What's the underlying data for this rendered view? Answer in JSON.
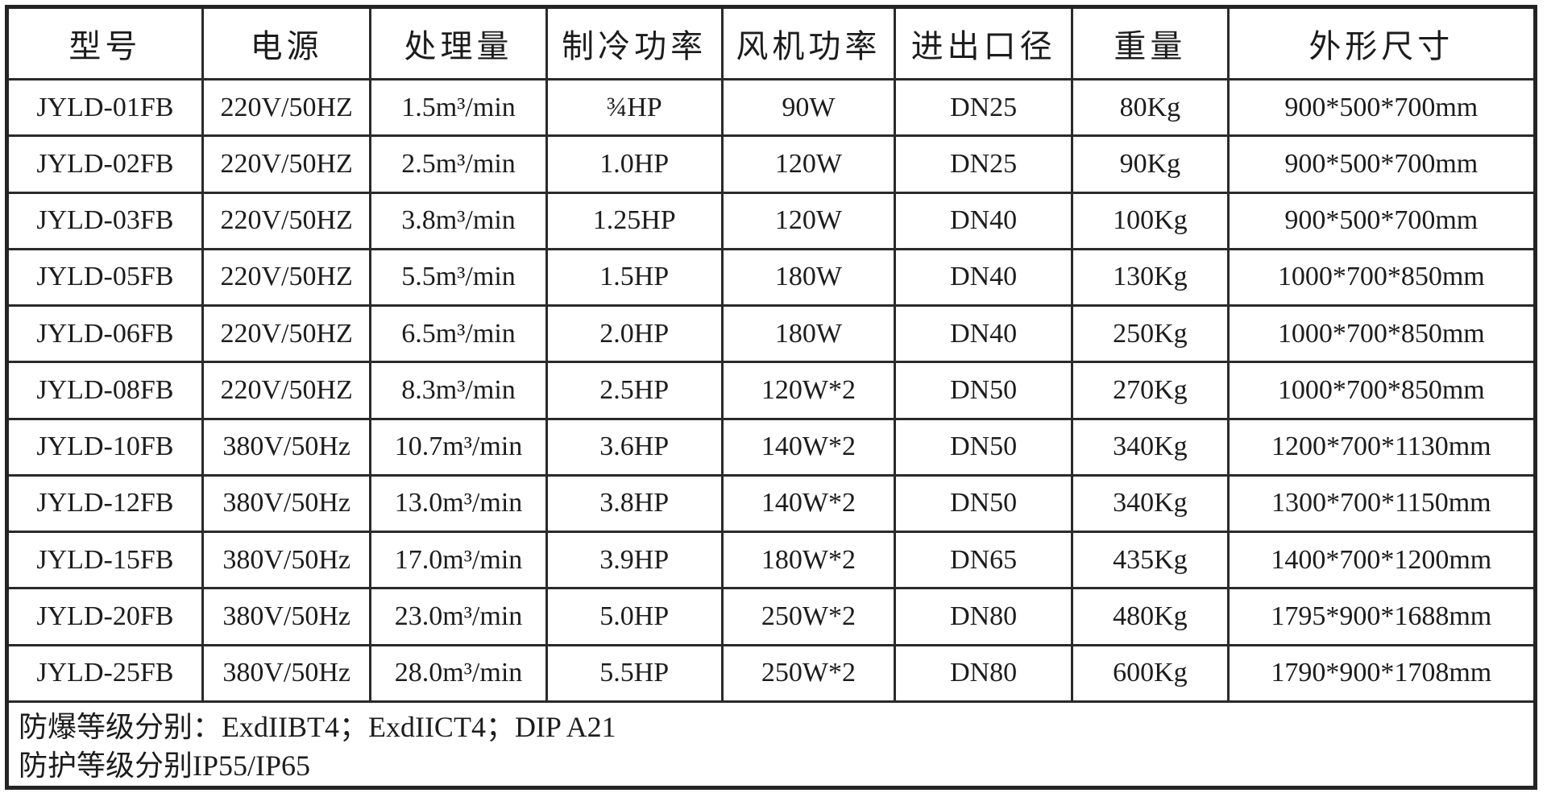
{
  "table": {
    "headers": [
      "型号",
      "电源",
      "处理量",
      "制冷功率",
      "风机功率",
      "进出口径",
      "重量",
      "外形尺寸"
    ],
    "rows": [
      [
        "JYLD-01FB",
        "220V/50HZ",
        "1.5m³/min",
        "¾HP",
        "90W",
        "DN25",
        "80Kg",
        "900*500*700mm"
      ],
      [
        "JYLD-02FB",
        "220V/50HZ",
        "2.5m³/min",
        "1.0HP",
        "120W",
        "DN25",
        "90Kg",
        "900*500*700mm"
      ],
      [
        "JYLD-03FB",
        "220V/50HZ",
        "3.8m³/min",
        "1.25HP",
        "120W",
        "DN40",
        "100Kg",
        "900*500*700mm"
      ],
      [
        "JYLD-05FB",
        "220V/50HZ",
        "5.5m³/min",
        "1.5HP",
        "180W",
        "DN40",
        "130Kg",
        "1000*700*850mm"
      ],
      [
        "JYLD-06FB",
        "220V/50HZ",
        "6.5m³/min",
        "2.0HP",
        "180W",
        "DN40",
        "250Kg",
        "1000*700*850mm"
      ],
      [
        "JYLD-08FB",
        "220V/50HZ",
        "8.3m³/min",
        "2.5HP",
        "120W*2",
        "DN50",
        "270Kg",
        "1000*700*850mm"
      ],
      [
        "JYLD-10FB",
        "380V/50Hz",
        "10.7m³/min",
        "3.6HP",
        "140W*2",
        "DN50",
        "340Kg",
        "1200*700*1130mm"
      ],
      [
        "JYLD-12FB",
        "380V/50Hz",
        "13.0m³/min",
        "3.8HP",
        "140W*2",
        "DN50",
        "340Kg",
        "1300*700*1150mm"
      ],
      [
        "JYLD-15FB",
        "380V/50Hz",
        "17.0m³/min",
        "3.9HP",
        "180W*2",
        "DN65",
        "435Kg",
        "1400*700*1200mm"
      ],
      [
        "JYLD-20FB",
        "380V/50Hz",
        "23.0m³/min",
        "5.0HP",
        "250W*2",
        "DN80",
        "480Kg",
        "1795*900*1688mm"
      ],
      [
        "JYLD-25FB",
        "380V/50Hz",
        "28.0m³/min",
        "5.5HP",
        "250W*2",
        "DN80",
        "600Kg",
        "1790*900*1708mm"
      ]
    ],
    "footer_lines": [
      "防爆等级分别：ExdIIBT4；ExdIICT4；DIP A21",
      "防护等级分别IP55/IP65"
    ]
  },
  "colors": {
    "border": "#2a2a2a",
    "text": "#1c1c1c",
    "background": "#ffffff"
  }
}
